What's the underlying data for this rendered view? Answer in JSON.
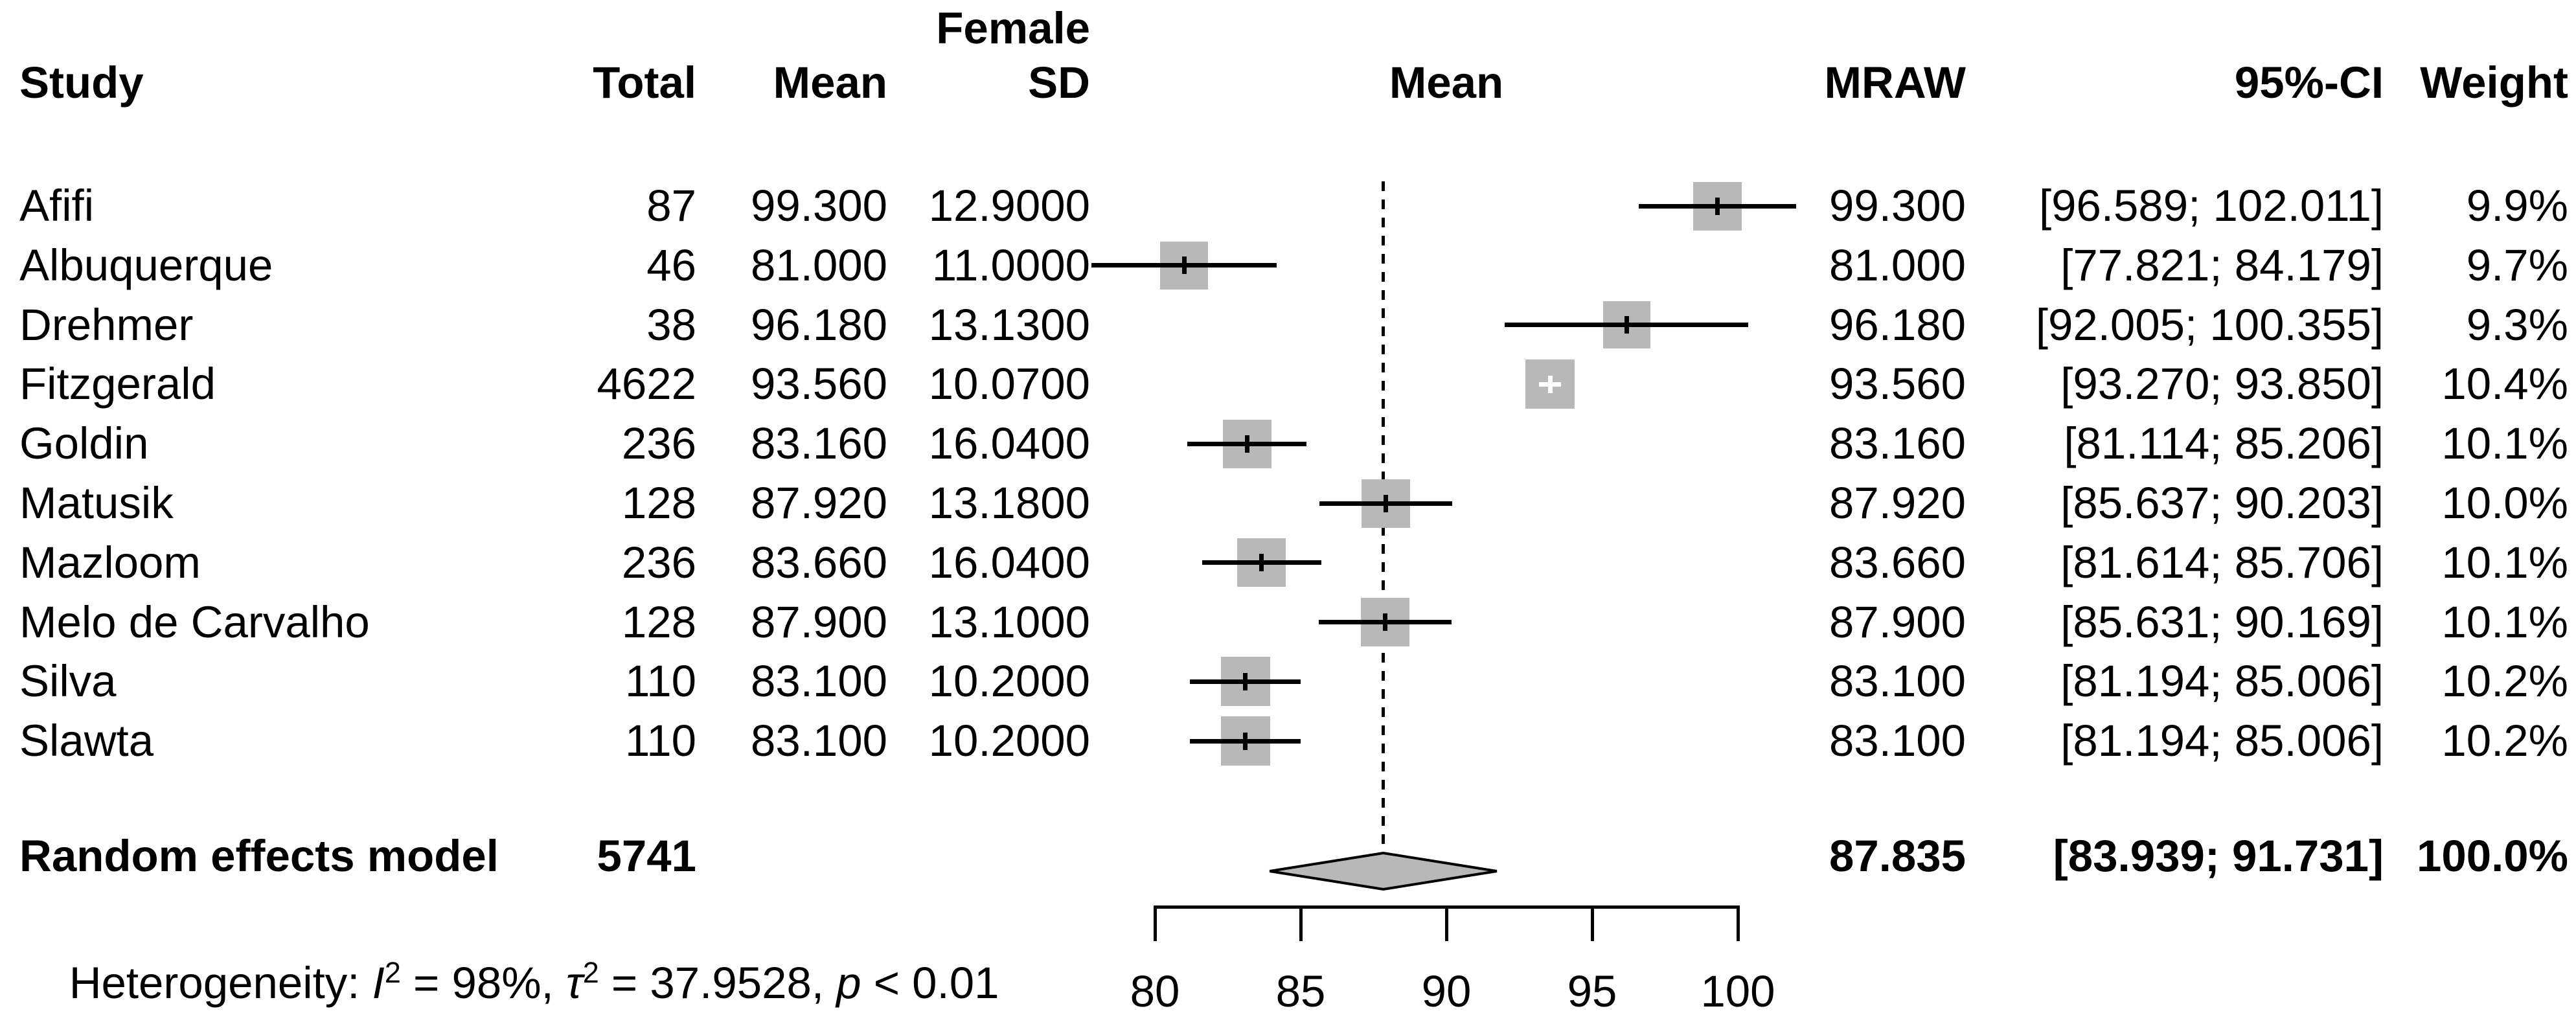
{
  "header": {
    "study": "Study",
    "total": "Total",
    "mean": "Mean",
    "group_line1": "Female",
    "sd": "SD",
    "plot_mean": "Mean",
    "mraw": "MRAW",
    "ci": "95%-CI",
    "weight": "Weight"
  },
  "heterogeneity": {
    "p1": "Heterogeneity: ",
    "p2": "I",
    "p3": "2",
    "p4": " = 98%, ",
    "p5": "τ",
    "p6": "2",
    "p7": " = 37.9528, ",
    "p8": "p",
    "p9": " < 0.01"
  },
  "colors": {
    "square_fill": "#b8b8b8",
    "diamond_fill": "#b8b8b8",
    "line": "#000000",
    "background": "#ffffff"
  },
  "chart_data": {
    "type": "forest",
    "effect_measure": "MRAW",
    "x_axis": {
      "range": [
        80,
        100
      ],
      "ticks": [
        80,
        85,
        90,
        95,
        100
      ],
      "tick_labels": [
        "80",
        "85",
        "90",
        "95",
        "100"
      ]
    },
    "reference_line": 87.835,
    "legend_position": "none",
    "grid": false,
    "studies": [
      {
        "label": "Afifi",
        "total": "87",
        "mean": "99.300",
        "sd": "12.9000",
        "mraw": "99.300",
        "ci": "[96.589; 102.011]",
        "weight": "9.9%",
        "est": 99.3,
        "lower": 96.589,
        "upper": 102.011,
        "weight_pct": 9.9
      },
      {
        "label": "Albuquerque",
        "total": "46",
        "mean": "81.000",
        "sd": "11.0000",
        "mraw": "81.000",
        "ci": "[77.821; 84.179]",
        "weight": "9.7%",
        "est": 81.0,
        "lower": 77.821,
        "upper": 84.179,
        "weight_pct": 9.7
      },
      {
        "label": "Drehmer",
        "total": "38",
        "mean": "96.180",
        "sd": "13.1300",
        "mraw": "96.180",
        "ci": "[92.005; 100.355]",
        "weight": "9.3%",
        "est": 96.18,
        "lower": 92.005,
        "upper": 100.355,
        "weight_pct": 9.3
      },
      {
        "label": "Fitzgerald",
        "total": "4622",
        "mean": "93.560",
        "sd": "10.0700",
        "mraw": "93.560",
        "ci": "[93.270; 93.850]",
        "weight": "10.4%",
        "est": 93.56,
        "lower": 93.27,
        "upper": 93.85,
        "weight_pct": 10.4
      },
      {
        "label": "Goldin",
        "total": "236",
        "mean": "83.160",
        "sd": "16.0400",
        "mraw": "83.160",
        "ci": "[81.114; 85.206]",
        "weight": "10.1%",
        "est": 83.16,
        "lower": 81.114,
        "upper": 85.206,
        "weight_pct": 10.1
      },
      {
        "label": "Matusik",
        "total": "128",
        "mean": "87.920",
        "sd": "13.1800",
        "mraw": "87.920",
        "ci": "[85.637; 90.203]",
        "weight": "10.0%",
        "est": 87.92,
        "lower": 85.637,
        "upper": 90.203,
        "weight_pct": 10.0
      },
      {
        "label": "Mazloom",
        "total": "236",
        "mean": "83.660",
        "sd": "16.0400",
        "mraw": "83.660",
        "ci": "[81.614; 85.706]",
        "weight": "10.1%",
        "est": 83.66,
        "lower": 81.614,
        "upper": 85.706,
        "weight_pct": 10.1
      },
      {
        "label": "Melo de Carvalho",
        "total": "128",
        "mean": "87.900",
        "sd": "13.1000",
        "mraw": "87.900",
        "ci": "[85.631; 90.169]",
        "weight": "10.1%",
        "est": 87.9,
        "lower": 85.631,
        "upper": 90.169,
        "weight_pct": 10.1
      },
      {
        "label": "Silva",
        "total": "110",
        "mean": "83.100",
        "sd": "10.2000",
        "mraw": "83.100",
        "ci": "[81.194; 85.006]",
        "weight": "10.2%",
        "est": 83.1,
        "lower": 81.194,
        "upper": 85.006,
        "weight_pct": 10.2
      },
      {
        "label": "Slawta",
        "total": "110",
        "mean": "83.100",
        "sd": "10.2000",
        "mraw": "83.100",
        "ci": "[81.194; 85.006]",
        "weight": "10.2%",
        "est": 83.1,
        "lower": 81.194,
        "upper": 85.006,
        "weight_pct": 10.2
      }
    ],
    "summary": {
      "label": "Random effects model",
      "total": "5741",
      "mraw": "87.835",
      "ci": "[83.939; 91.731]",
      "weight": "100.0%",
      "est": 87.835,
      "lower": 83.939,
      "upper": 91.731,
      "weight_pct": 100.0
    }
  }
}
